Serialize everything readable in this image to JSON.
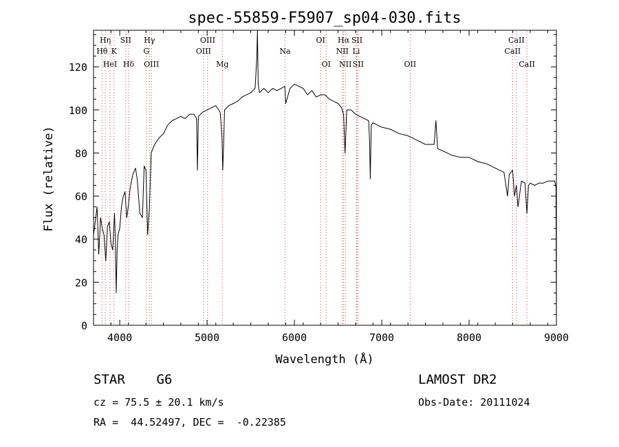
{
  "chart_data": {
    "type": "line",
    "title": "spec-55859-F5907_sp04-030.fits",
    "xlabel": "Wavelength (Å)",
    "ylabel": "Flux (relative)",
    "xlim": [
      3700,
      9000
    ],
    "ylim": [
      0,
      137
    ],
    "xticks": [
      4000,
      5000,
      6000,
      7000,
      8000,
      9000
    ],
    "yticks": [
      0,
      20,
      40,
      60,
      80,
      100,
      120
    ],
    "grid": false,
    "line_markers": [
      {
        "label": "Hη",
        "x": 3835,
        "row": 1
      },
      {
        "label": "Hθ",
        "x": 3797,
        "row": 2
      },
      {
        "label": "K",
        "x": 3934,
        "row": 2
      },
      {
        "label": "HeI",
        "x": 3889,
        "row": 3
      },
      {
        "label": "SII",
        "x": 4069,
        "row": 1
      },
      {
        "label": "Hδ",
        "x": 4102,
        "row": 3
      },
      {
        "label": "Hγ",
        "x": 4340,
        "row": 1
      },
      {
        "label": "G",
        "x": 4305,
        "row": 2
      },
      {
        "label": "OIII",
        "x": 4363,
        "row": 3
      },
      {
        "label": "OIII",
        "x": 5007,
        "row": 1
      },
      {
        "label": "OIII",
        "x": 4959,
        "row": 2
      },
      {
        "label": "Mg",
        "x": 5175,
        "row": 3
      },
      {
        "label": "Na",
        "x": 5893,
        "row": 2
      },
      {
        "label": "OI",
        "x": 6300,
        "row": 1
      },
      {
        "label": "OI",
        "x": 6364,
        "row": 3
      },
      {
        "label": "Hα",
        "x": 6563,
        "row": 1
      },
      {
        "label": "SII",
        "x": 6716,
        "row": 1
      },
      {
        "label": "NII",
        "x": 6548,
        "row": 2
      },
      {
        "label": "Li",
        "x": 6708,
        "row": 2
      },
      {
        "label": "NII",
        "x": 6584,
        "row": 3
      },
      {
        "label": "SII",
        "x": 6731,
        "row": 3
      },
      {
        "label": "OII",
        "x": 7325,
        "row": 3
      },
      {
        "label": "CaII",
        "x": 8542,
        "row": 1
      },
      {
        "label": "CaII",
        "x": 8498,
        "row": 2
      },
      {
        "label": "CaII",
        "x": 8662,
        "row": 3
      }
    ],
    "series": [
      {
        "x": [
          3700,
          3720,
          3740,
          3760,
          3780,
          3800,
          3820,
          3840,
          3860,
          3880,
          3900,
          3920,
          3940,
          3950,
          3960,
          3970,
          3980,
          4000,
          4020,
          4040,
          4060,
          4080,
          4100,
          4120,
          4150,
          4180,
          4200,
          4230,
          4260,
          4280,
          4300,
          4320,
          4340,
          4360,
          4380,
          4400,
          4450,
          4500,
          4550,
          4600,
          4650,
          4700,
          4750,
          4800,
          4850,
          4880,
          4890,
          4900,
          4950,
          5000,
          5050,
          5100,
          5150,
          5170,
          5180,
          5190,
          5200,
          5250,
          5300,
          5350,
          5400,
          5450,
          5500,
          5550,
          5570,
          5577,
          5585,
          5600,
          5650,
          5700,
          5750,
          5800,
          5850,
          5890,
          5900,
          5950,
          6000,
          6050,
          6100,
          6150,
          6200,
          6250,
          6300,
          6350,
          6400,
          6450,
          6500,
          6540,
          6563,
          6580,
          6600,
          6650,
          6700,
          6750,
          6800,
          6850,
          6860,
          6869,
          6880,
          6900,
          7000,
          7100,
          7200,
          7300,
          7400,
          7500,
          7600,
          7620,
          7640,
          7700,
          7800,
          7900,
          8000,
          8100,
          8200,
          8300,
          8400,
          8440,
          8460,
          8498,
          8520,
          8542,
          8560,
          8600,
          8640,
          8662,
          8680,
          8700,
          8750,
          8800,
          8850,
          8900,
          8950,
          8980,
          8995,
          9000
        ],
        "y": [
          42,
          48,
          55,
          33,
          50,
          45,
          42,
          30,
          46,
          48,
          38,
          35,
          52,
          40,
          15,
          35,
          42,
          45,
          55,
          60,
          62,
          50,
          56,
          64,
          70,
          73,
          68,
          52,
          50,
          74,
          72,
          42,
          55,
          80,
          82,
          84,
          87,
          89,
          93,
          95,
          96,
          97,
          96,
          98,
          98,
          96,
          72,
          97,
          99,
          100,
          101,
          102,
          99,
          88,
          72,
          85,
          100,
          102,
          103,
          104,
          106,
          107,
          108,
          110,
          125,
          137,
          112,
          108,
          110,
          108,
          110,
          109,
          110,
          111,
          103,
          110,
          112,
          111,
          110,
          107,
          109,
          106,
          107,
          107,
          105,
          104,
          103,
          101,
          98,
          80,
          100,
          100,
          98,
          97,
          96,
          95,
          86,
          68,
          93,
          94,
          92,
          91,
          89,
          88,
          86,
          84,
          84,
          95,
          82,
          81,
          79,
          78,
          78,
          76,
          75,
          73,
          71,
          60,
          70,
          72,
          60,
          65,
          55,
          67,
          66,
          52,
          65,
          66,
          65,
          66,
          66,
          67,
          67,
          67,
          64,
          0
        ]
      }
    ]
  },
  "footer": {
    "object": "STAR    G6",
    "survey": "LAMOST DR2",
    "cz": "cz = 75.5 ± 20.1 km/s",
    "obs_date": "Obs-Date: 20111024",
    "radec": "RA =  44.52497, DEC =  -0.22385"
  }
}
